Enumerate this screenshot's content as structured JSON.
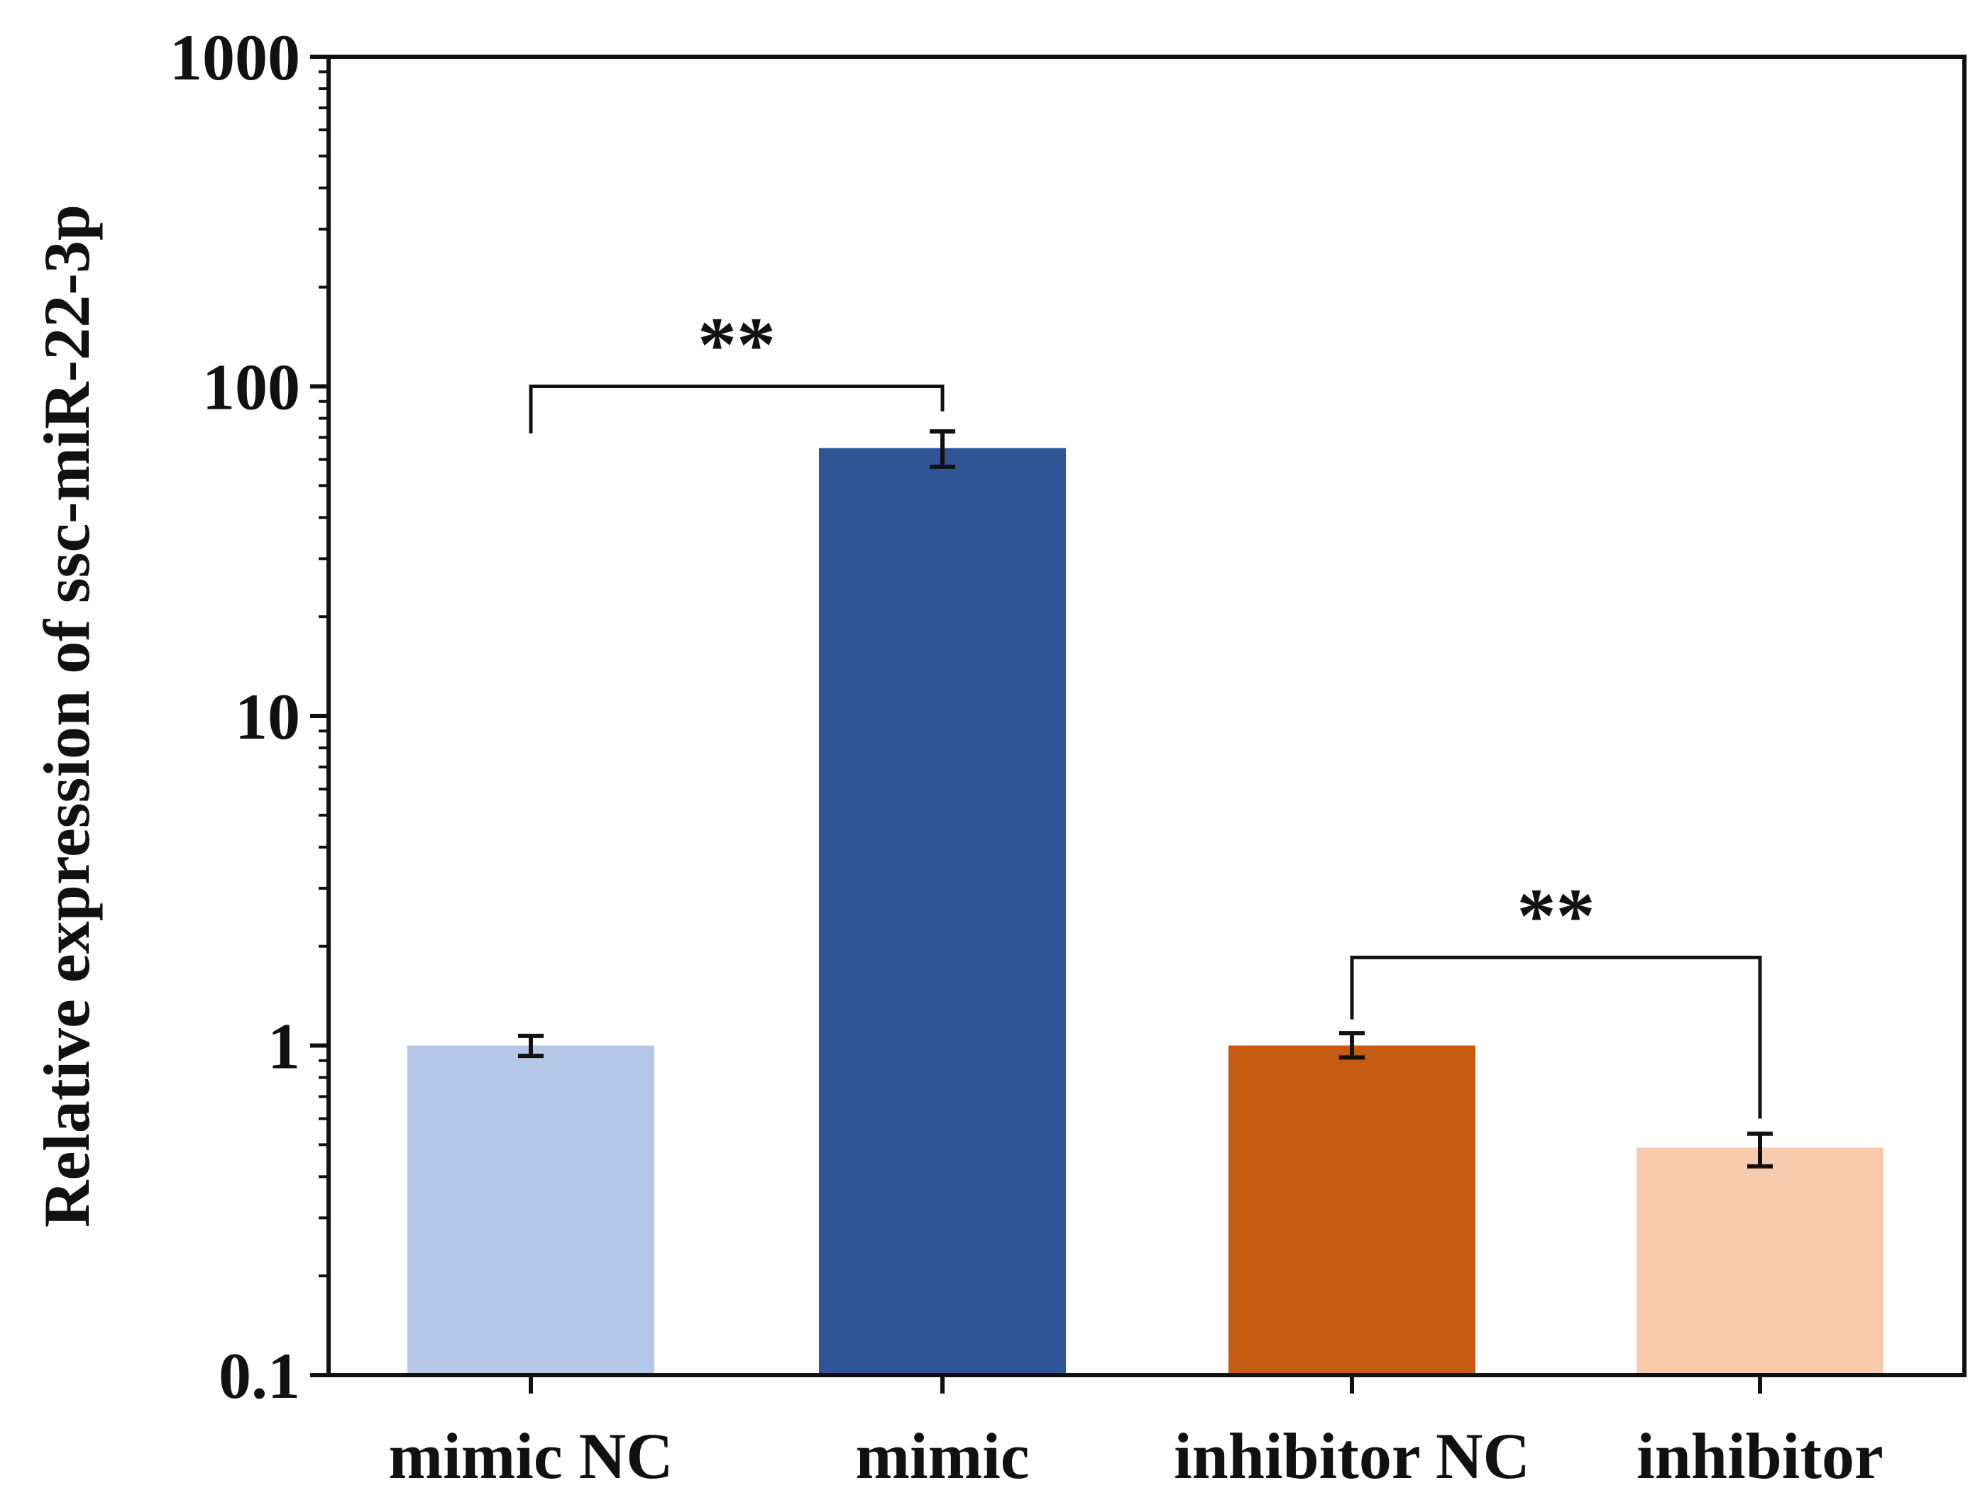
{
  "chart_data": {
    "type": "bar",
    "title": "",
    "xlabel": "",
    "ylabel": "Relative  expression of ssc-miR-22-3p",
    "yscale": "log",
    "ylim": [
      0.1,
      1000
    ],
    "yticks": [
      0.1,
      1,
      10,
      100,
      1000
    ],
    "ytick_labels": [
      "0.1",
      "1",
      "10",
      "100",
      "1000"
    ],
    "grid": false,
    "categories": [
      "mimic NC",
      "mimic",
      "inhibitor NC",
      "inhibitor"
    ],
    "values": [
      1.0,
      65.0,
      1.0,
      0.49
    ],
    "error_low": [
      0.93,
      57.0,
      0.92,
      0.43
    ],
    "error_high": [
      1.07,
      73.0,
      1.09,
      0.54
    ],
    "colors": [
      "#b4c7e7",
      "#2f5597",
      "#c55a11",
      "#f8cbad"
    ],
    "significance": [
      {
        "from": 0,
        "to": 1,
        "label": "**",
        "bracket_y": 100,
        "left_drop_to": 72,
        "right_drop_to": 84
      },
      {
        "from": 2,
        "to": 3,
        "label": "**",
        "bracket_y": 1.85,
        "left_drop_to": 1.2,
        "right_drop_to": 0.6
      }
    ]
  }
}
